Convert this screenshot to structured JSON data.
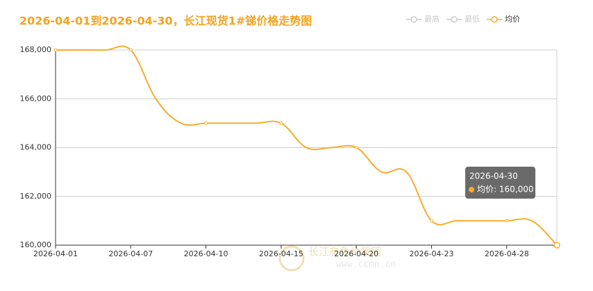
{
  "chart_data": {
    "type": "line",
    "title": "2026-04-01到2026-04-30，长江现货1#锑价格走势图",
    "legend_inactive": [
      "最高",
      "最低"
    ],
    "categories": [
      "2026-04-01",
      null,
      null,
      "2026-04-07",
      null,
      null,
      "2026-04-10",
      null,
      null,
      "2026-04-15",
      null,
      null,
      "2026-04-20",
      null,
      null,
      "2026-04-23",
      null,
      null,
      "2026-04-28",
      null,
      null
    ],
    "series": [
      {
        "name": "均价",
        "color": "#f8ac2c",
        "values": [
          168000,
          168000,
          168000,
          168000,
          166000,
          165000,
          165000,
          165000,
          165000,
          165000,
          164000,
          164000,
          164000,
          163000,
          163000,
          161000,
          161000,
          161000,
          161000,
          161000,
          160000
        ]
      }
    ],
    "ylim": [
      160000,
      168000
    ],
    "yticks": [
      {
        "value": 160000,
        "label": "160,000"
      },
      {
        "value": 162000,
        "label": "162,000"
      },
      {
        "value": 164000,
        "label": "164,000"
      },
      {
        "value": 166000,
        "label": "166,000"
      },
      {
        "value": 168000,
        "label": "168,000"
      }
    ],
    "grid": true,
    "tooltip": {
      "title": "2026-04-30",
      "text": "均价: 160,000"
    },
    "watermark": {
      "name": "长江有色金属网",
      "url": "www.ccmn.cn"
    }
  }
}
